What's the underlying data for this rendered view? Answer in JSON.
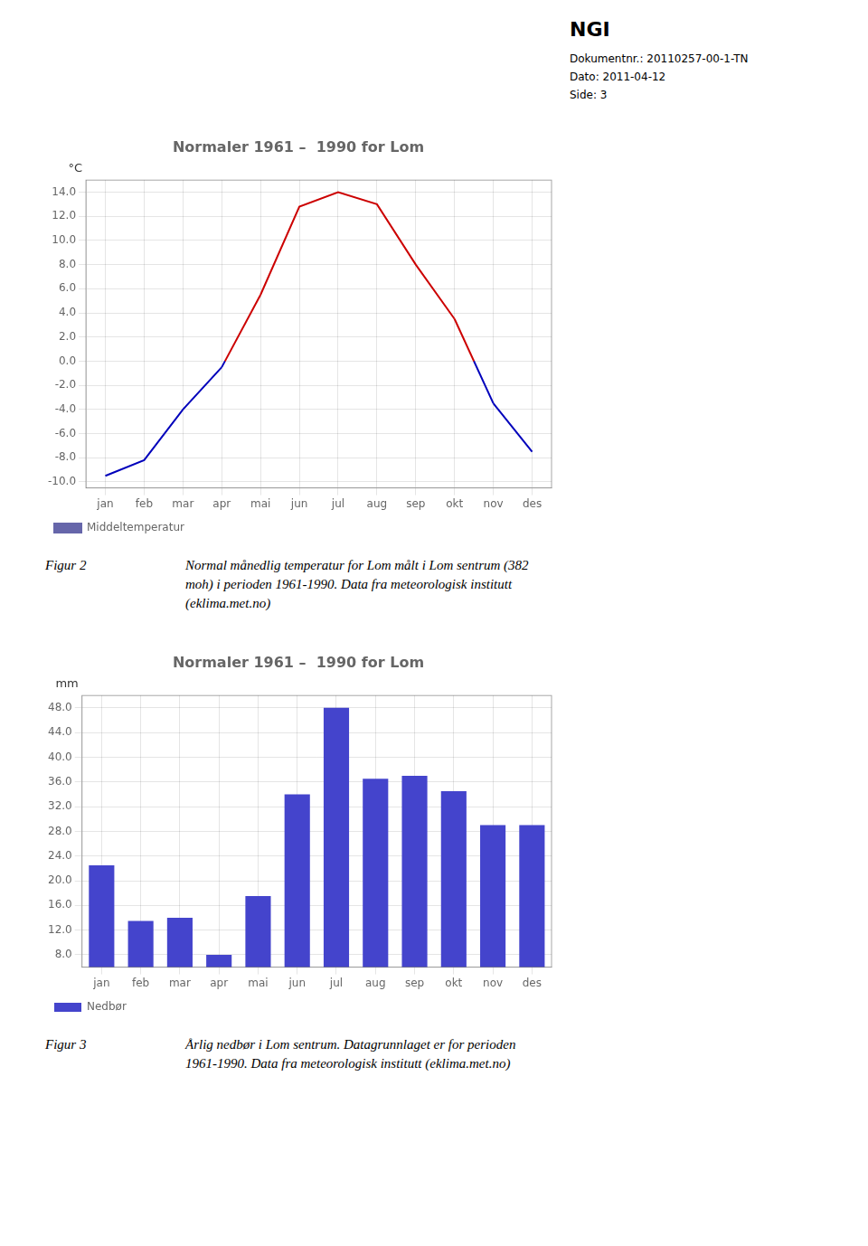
{
  "annotations": [
    "NGI",
    "Dokumentnr.: 20110257-00-1-TN",
    "Dato: 2011-04-12",
    "Side: 3"
  ],
  "chart_data": [
    {
      "type": "line",
      "title": "Normaler 1961 –  1990 for Lom",
      "ylabel": "°C",
      "categories": [
        "jan",
        "feb",
        "mar",
        "apr",
        "mai",
        "jun",
        "jul",
        "aug",
        "sep",
        "okt",
        "nov",
        "des"
      ],
      "series": [
        {
          "name": "Middeltemperatur",
          "color": "#6666aa",
          "colors": [
            "#0000bb",
            "#0000bb",
            "#0000bb",
            "#0000bb",
            "#cc0000",
            "#cc0000",
            "#cc0000",
            "#cc0000",
            "#cc0000",
            "#cc0000",
            "#0000bb",
            "#0000bb"
          ],
          "values": [
            -9.5,
            -8.2,
            -4.0,
            -0.5,
            5.5,
            12.8,
            14.0,
            13.0,
            8.0,
            3.5,
            -3.5,
            -7.5
          ]
        }
      ],
      "ylim": [
        -10.5,
        15.0
      ],
      "yticks": [
        {
          "value": -10,
          "label": "-10.0"
        },
        {
          "value": -8,
          "label": "-8.0"
        },
        {
          "value": -6,
          "label": "-6.0"
        },
        {
          "value": -4,
          "label": "-4.0"
        },
        {
          "value": -2,
          "label": "-2.0"
        },
        {
          "value": 0,
          "label": "0.0"
        },
        {
          "value": 2,
          "label": "2.0"
        },
        {
          "value": 4,
          "label": "4.0"
        },
        {
          "value": 6,
          "label": "6.0"
        },
        {
          "value": 8,
          "label": "8.0"
        },
        {
          "value": 10,
          "label": "10.0"
        },
        {
          "value": 12,
          "label": "12.0"
        },
        {
          "value": 14,
          "label": "14.0"
        }
      ],
      "grid": true,
      "legend": "bottom",
      "annotations": [
        "Figur 2",
        "Normal månedlig temperatur for Lom målt i Lom sentrum (382\nmoh) i perioden 1961-1990. Data fra meteorologisk institutt\n(eklima.met.no)"
      ]
    },
    {
      "type": "bar",
      "title": "Normaler 1961 –  1990 for Lom",
      "ylabel": "mm",
      "categories": [
        "jan",
        "feb",
        "mar",
        "apr",
        "mai",
        "jun",
        "jul",
        "aug",
        "sep",
        "okt",
        "nov",
        "des"
      ],
      "series": [
        {
          "name": "Nedbør",
          "color": "#4444cc",
          "values": [
            22.5,
            13.5,
            14.0,
            8.0,
            17.5,
            34.0,
            48.0,
            36.5,
            37.0,
            34.5,
            29.0,
            29.0
          ]
        }
      ],
      "ylim": [
        6.0,
        50.0
      ],
      "yticks": [
        {
          "value": 8,
          "label": "8.0"
        },
        {
          "value": 12,
          "label": "12.0"
        },
        {
          "value": 16,
          "label": "16.0"
        },
        {
          "value": 20,
          "label": "20.0"
        },
        {
          "value": 24,
          "label": "24.0"
        },
        {
          "value": 28,
          "label": "28.0"
        },
        {
          "value": 32,
          "label": "32.0"
        },
        {
          "value": 36,
          "label": "36.0"
        },
        {
          "value": 40,
          "label": "40.0"
        },
        {
          "value": 44,
          "label": "44.0"
        },
        {
          "value": 48,
          "label": "48.0"
        }
      ],
      "grid": true,
      "legend": "bottom",
      "annotations": [
        "Figur 3",
        "Årlig nedbør i Lom sentrum. Datagrunnlaget er for perioden\n1961-1990.  Data fra meteorologisk institutt (eklima.met.no)"
      ]
    }
  ]
}
